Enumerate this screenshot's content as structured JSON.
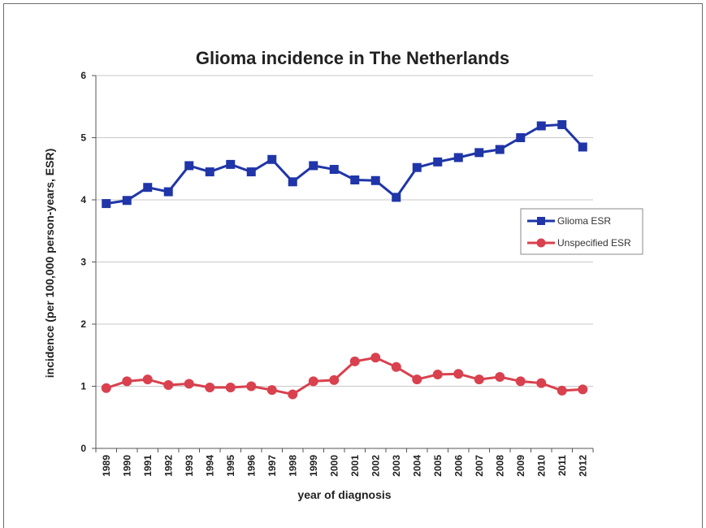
{
  "chart_data": {
    "type": "line",
    "title": "Glioma incidence in The Netherlands",
    "xlabel": "year of diagnosis",
    "ylabel": "incidence (per 100,000 person-years, ESR)",
    "ylim": [
      0,
      6
    ],
    "yticks": [
      "0",
      "1",
      "2",
      "3",
      "4",
      "5",
      "6"
    ],
    "grid": true,
    "legend_position": "right",
    "categories": [
      "1989",
      "1990",
      "1991",
      "1992",
      "1993",
      "1994",
      "1995",
      "1996",
      "1997",
      "1998",
      "1999",
      "2000",
      "2001",
      "2002",
      "2003",
      "2004",
      "2005",
      "2006",
      "2007",
      "2008",
      "2009",
      "2010",
      "2011",
      "2012"
    ],
    "series": [
      {
        "name": "Glioma ESR",
        "color": "#1f35a8",
        "marker": "square",
        "values": [
          3.94,
          3.99,
          4.2,
          4.13,
          4.55,
          4.45,
          4.57,
          4.45,
          4.65,
          4.29,
          4.55,
          4.49,
          4.32,
          4.31,
          4.04,
          4.52,
          4.61,
          4.68,
          4.76,
          4.81,
          5.0,
          5.19,
          5.21,
          4.85
        ]
      },
      {
        "name": "Unspecified ESR",
        "color": "#d9414e",
        "marker": "circle",
        "values": [
          0.97,
          1.08,
          1.11,
          1.02,
          1.04,
          0.98,
          0.98,
          1.0,
          0.94,
          0.87,
          1.08,
          1.1,
          1.4,
          1.46,
          1.31,
          1.11,
          1.19,
          1.2,
          1.11,
          1.15,
          1.08,
          1.05,
          0.93,
          0.95
        ]
      }
    ]
  }
}
